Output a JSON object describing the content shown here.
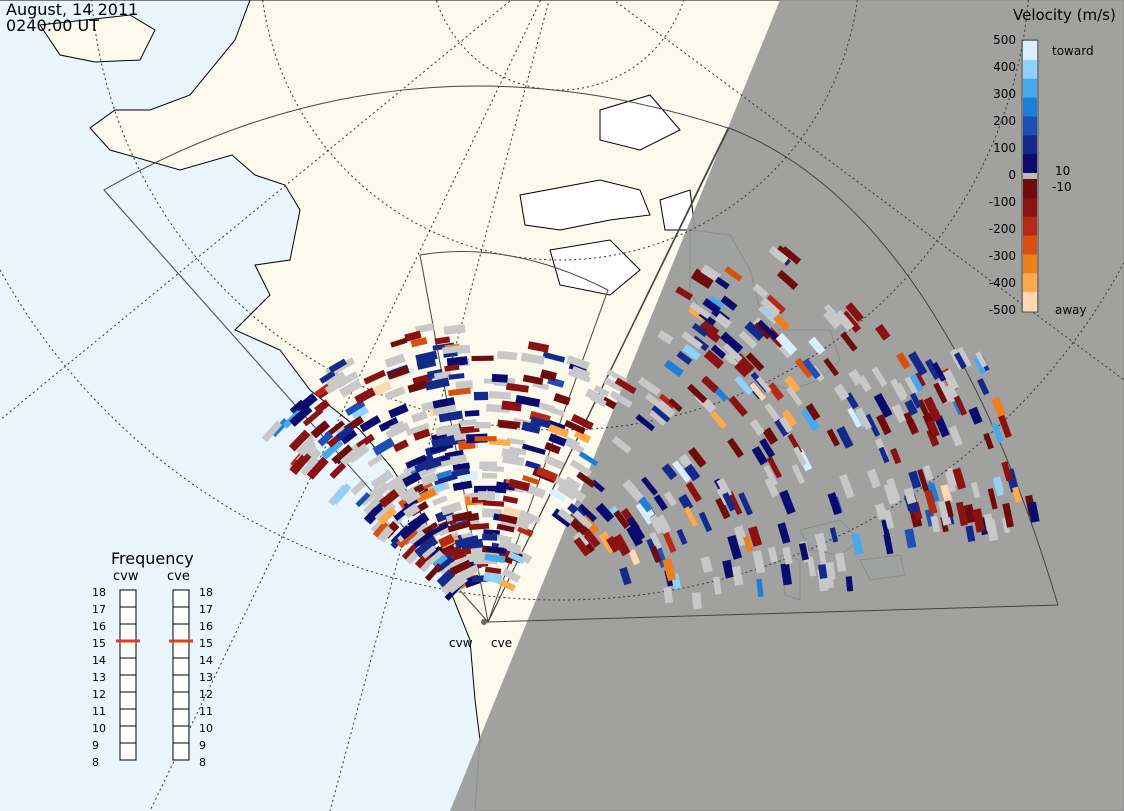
{
  "header": {
    "date": "August, 14 2011",
    "time": "0240:00 UT"
  },
  "colorbar": {
    "title": "Velocity (m/s)",
    "ticks": [
      "500",
      "400",
      "300",
      "200",
      "100",
      "0",
      "-100",
      "-200",
      "-300",
      "-400",
      "-500"
    ],
    "inner_ticks": [
      "10",
      "-10"
    ],
    "toward_label": "toward",
    "away_label": "away",
    "colors": [
      "#d9efff",
      "#8fd1ff",
      "#45a9ee",
      "#1f7fd8",
      "#1e4fb4",
      "#142a8a",
      "#0b0b6e",
      "#6e0b0b",
      "#8a1212",
      "#b42a14",
      "#d84f10",
      "#ee7f1a",
      "#ffa94a",
      "#ffd7b0"
    ],
    "zero_color": "#bbbbbb"
  },
  "frequency": {
    "title": "Frequency",
    "radars": [
      {
        "label": "cvw",
        "value": 15
      },
      {
        "label": "cve",
        "value": 15
      }
    ],
    "scale": [
      "18",
      "17",
      "16",
      "15",
      "14",
      "13",
      "12",
      "11",
      "10",
      "9",
      "8"
    ],
    "marker_color": "#e0401a"
  },
  "radars": [
    {
      "label": "cvw"
    },
    {
      "label": "cve"
    }
  ],
  "colors": {
    "ocean": "#eaf6ff",
    "land": "#fbfaec",
    "night": "#999999",
    "ground_scatter": "#c8c8c8"
  }
}
